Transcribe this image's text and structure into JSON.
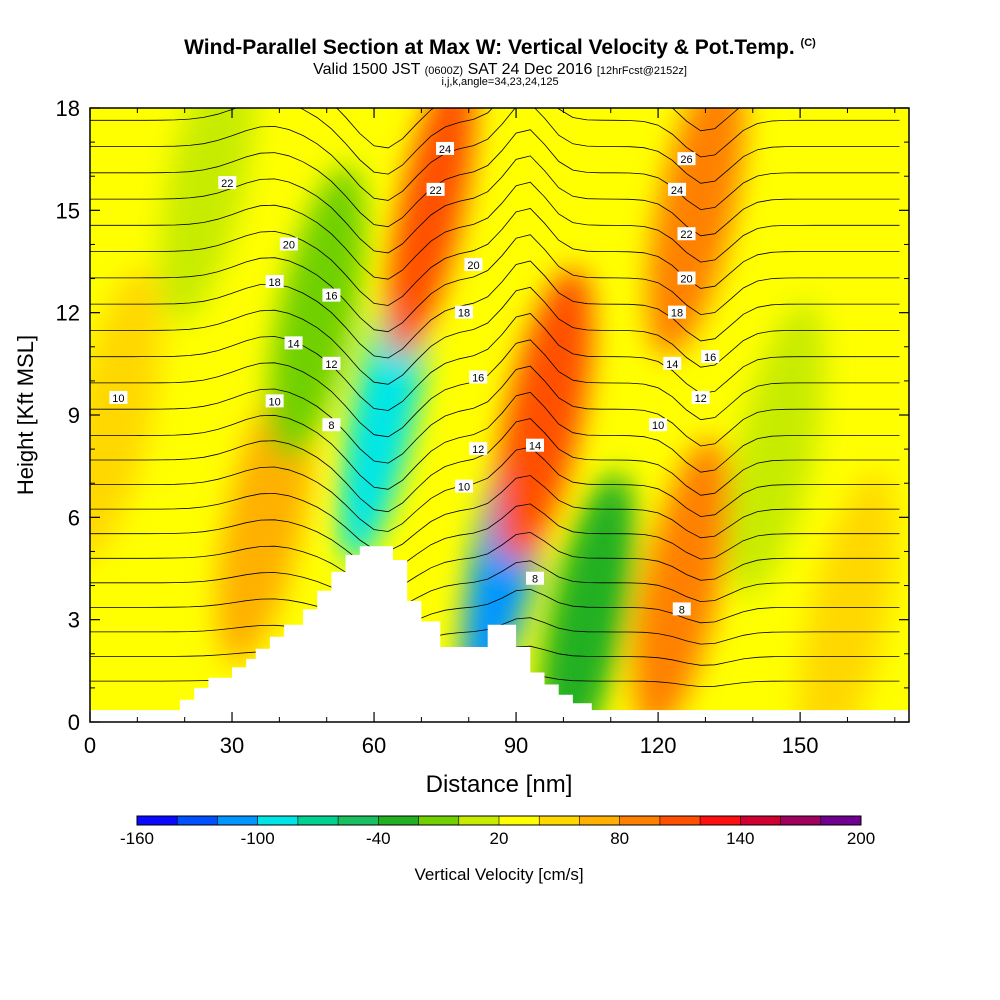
{
  "title": {
    "main": "Wind-Parallel Section at Max W: Vertical Velocity & Pot.Temp.",
    "copyright": "(C)",
    "valid": "Valid 1500 JST",
    "valid_utc": "(0600Z)",
    "date": "SAT 24 Dec 2016",
    "forecast": "[12hrFcst@2152z]",
    "indices": "i,j,k,angle=34,23,24,125"
  },
  "chart_data": {
    "type": "heatmap",
    "xlabel": "Distance [nm]",
    "ylabel": "Height [Kft MSL]",
    "xlim": [
      0,
      173
    ],
    "ylim": [
      0,
      18
    ],
    "x_ticks": [
      0,
      30,
      60,
      90,
      120,
      150
    ],
    "y_ticks": [
      0,
      3,
      6,
      9,
      12,
      15,
      18
    ],
    "colorbar": {
      "label": "Vertical Velocity [cm/s]",
      "tick_labels": [
        "-160",
        "-100",
        "-40",
        "20",
        "80",
        "140",
        "200"
      ],
      "colors": [
        "#0a0aff",
        "#0050ff",
        "#0096ff",
        "#00e6e6",
        "#00d090",
        "#18c060",
        "#20b020",
        "#70d000",
        "#c8ec00",
        "#ffff00",
        "#ffd800",
        "#ffb000",
        "#ff8000",
        "#ff5000",
        "#ff1010",
        "#d00030",
        "#a00060",
        "#700090"
      ]
    },
    "velocity_features": [
      {
        "x": 5,
        "y": 9,
        "value": 20
      },
      {
        "x": 25,
        "y": 16,
        "value": -20
      },
      {
        "x": 37,
        "y": 6,
        "value": 50
      },
      {
        "x": 48,
        "y": 12,
        "value": -40
      },
      {
        "x": 62,
        "y": 9,
        "value": -110
      },
      {
        "x": 72,
        "y": 15,
        "value": 90
      },
      {
        "x": 88,
        "y": 5,
        "value": -130
      },
      {
        "x": 96,
        "y": 9,
        "value": 80
      },
      {
        "x": 105,
        "y": 3,
        "value": -50
      },
      {
        "x": 125,
        "y": 4,
        "value": 60
      },
      {
        "x": 128,
        "y": 15,
        "value": 70
      },
      {
        "x": 145,
        "y": 8,
        "value": -20
      },
      {
        "x": 160,
        "y": 3,
        "value": 30
      }
    ],
    "theta_contour_labels": [
      {
        "label": "22",
        "x": 29,
        "y": 15.8
      },
      {
        "label": "20",
        "x": 42,
        "y": 14.0
      },
      {
        "label": "18",
        "x": 39,
        "y": 12.9
      },
      {
        "label": "16",
        "x": 51,
        "y": 12.5
      },
      {
        "label": "14",
        "x": 43,
        "y": 11.1
      },
      {
        "label": "12",
        "x": 51,
        "y": 10.5
      },
      {
        "label": "10",
        "x": 6,
        "y": 9.5
      },
      {
        "label": "10",
        "x": 39,
        "y": 9.4
      },
      {
        "label": "8",
        "x": 51,
        "y": 8.7
      },
      {
        "label": "24",
        "x": 75,
        "y": 16.8
      },
      {
        "label": "22",
        "x": 73,
        "y": 15.6
      },
      {
        "label": "20",
        "x": 81,
        "y": 13.4
      },
      {
        "label": "18",
        "x": 79,
        "y": 12.0
      },
      {
        "label": "16",
        "x": 82,
        "y": 10.1
      },
      {
        "label": "12",
        "x": 82,
        "y": 8.0
      },
      {
        "label": "10",
        "x": 79,
        "y": 6.9
      },
      {
        "label": "14",
        "x": 94,
        "y": 8.1
      },
      {
        "label": "8",
        "x": 94,
        "y": 4.2
      },
      {
        "label": "26",
        "x": 126,
        "y": 16.5
      },
      {
        "label": "24",
        "x": 124,
        "y": 15.6
      },
      {
        "label": "22",
        "x": 126,
        "y": 14.3
      },
      {
        "label": "20",
        "x": 126,
        "y": 13.0
      },
      {
        "label": "18",
        "x": 124,
        "y": 12.0
      },
      {
        "label": "14",
        "x": 123,
        "y": 10.5
      },
      {
        "label": "16",
        "x": 131,
        "y": 10.7
      },
      {
        "label": "12",
        "x": 129,
        "y": 9.5
      },
      {
        "label": "10",
        "x": 120,
        "y": 8.7
      },
      {
        "label": "8",
        "x": 125,
        "y": 3.3
      }
    ],
    "terrain": [
      [
        0,
        0.35
      ],
      [
        19,
        0.35
      ],
      [
        19,
        0.65
      ],
      [
        22,
        0.65
      ],
      [
        22,
        1.0
      ],
      [
        25,
        1.0
      ],
      [
        25,
        1.3
      ],
      [
        30,
        1.3
      ],
      [
        30,
        1.6
      ],
      [
        33,
        1.6
      ],
      [
        33,
        1.85
      ],
      [
        35,
        1.85
      ],
      [
        35,
        2.15
      ],
      [
        38,
        2.15
      ],
      [
        38,
        2.5
      ],
      [
        41,
        2.5
      ],
      [
        41,
        2.85
      ],
      [
        45,
        2.85
      ],
      [
        45,
        3.3
      ],
      [
        48,
        3.3
      ],
      [
        48,
        3.85
      ],
      [
        51,
        3.85
      ],
      [
        51,
        4.4
      ],
      [
        54,
        4.4
      ],
      [
        54,
        4.9
      ],
      [
        57,
        4.9
      ],
      [
        57,
        5.15
      ],
      [
        64,
        5.15
      ],
      [
        64,
        4.75
      ],
      [
        67,
        4.75
      ],
      [
        67,
        3.55
      ],
      [
        70,
        3.55
      ],
      [
        70,
        2.95
      ],
      [
        74,
        2.95
      ],
      [
        74,
        2.2
      ],
      [
        84,
        2.2
      ],
      [
        84,
        2.85
      ],
      [
        90,
        2.85
      ],
      [
        90,
        2.2
      ],
      [
        93,
        2.2
      ],
      [
        93,
        1.45
      ],
      [
        96,
        1.45
      ],
      [
        96,
        1.1
      ],
      [
        99,
        1.1
      ],
      [
        99,
        0.8
      ],
      [
        102,
        0.8
      ],
      [
        102,
        0.55
      ],
      [
        106,
        0.55
      ],
      [
        106,
        0.35
      ],
      [
        173,
        0.35
      ]
    ]
  }
}
